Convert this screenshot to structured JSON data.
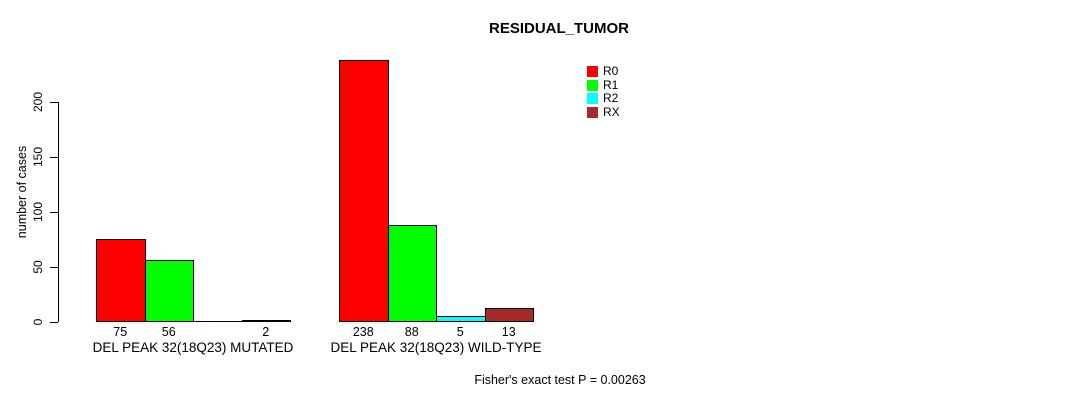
{
  "chart_data": {
    "type": "bar",
    "title": "RESIDUAL_TUMOR",
    "xlabel": "",
    "ylabel": "number of cases",
    "ylim": [
      0,
      200
    ],
    "yticks": [
      0,
      50,
      100,
      150,
      200
    ],
    "grid": false,
    "legend_position": "top-right",
    "categories": [
      "DEL PEAK 32(18Q23) MUTATED",
      "DEL PEAK 32(18Q23) WILD-TYPE"
    ],
    "series": [
      {
        "name": "R0",
        "color": "#FF0000",
        "values": [
          75,
          238
        ]
      },
      {
        "name": "R1",
        "color": "#00FF00",
        "values": [
          56,
          88
        ]
      },
      {
        "name": "R2",
        "color": "#00FFFF",
        "values": [
          0,
          5
        ]
      },
      {
        "name": "RX",
        "color": "#A52A2A",
        "values": [
          2,
          13
        ]
      }
    ],
    "bar_value_labels": {
      "shown": true,
      "hide_zero": true
    },
    "annotation": "Fisher's exact test P = 0.00263"
  }
}
